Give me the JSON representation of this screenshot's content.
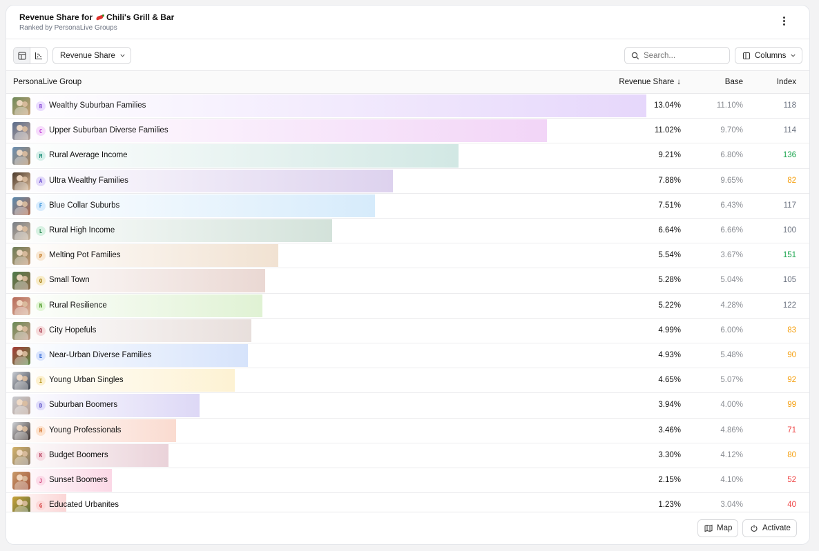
{
  "header": {
    "title_prefix": "Revenue Share for",
    "brand": "Chili's Grill & Bar",
    "subtitle": "Ranked by PersonaLive Groups"
  },
  "toolbar": {
    "metric_label": "Revenue Share",
    "search_placeholder": "Search...",
    "columns_label": "Columns"
  },
  "table": {
    "columns": {
      "group": "PersonaLive Group",
      "revenue_share": "Revenue Share",
      "sort_icon": "↓",
      "base": "Base",
      "index": "Index"
    },
    "rows": [
      {
        "letter": "B",
        "name": "Wealthy Suburban Families",
        "revenue_share": "13.04%",
        "base": "11.10%",
        "index": "118",
        "share_value": 13.04,
        "bar_color": "#e6d7fb",
        "letter_bg": "#eadcff",
        "letter_color": "#8a4dd6",
        "index_color": "#6b7280",
        "thumb_colors": [
          "#6f8a5a",
          "#c9a27a"
        ]
      },
      {
        "letter": "C",
        "name": "Upper Suburban Diverse Families",
        "revenue_share": "11.02%",
        "base": "9.70%",
        "index": "114",
        "share_value": 11.02,
        "bar_color": "#f2d5f7",
        "letter_bg": "#f6dcfb",
        "letter_color": "#c13bd6",
        "index_color": "#6b7280",
        "thumb_colors": [
          "#5b6b8a",
          "#b9a59a"
        ]
      },
      {
        "letter": "M",
        "name": "Rural Average Income",
        "revenue_share": "9.21%",
        "base": "6.80%",
        "index": "136",
        "share_value": 9.21,
        "bar_color": "#d2e8e4",
        "letter_bg": "#d6efe9",
        "letter_color": "#1f8f7a",
        "index_color": "#16a34a",
        "thumb_colors": [
          "#6a8fb3",
          "#a8845e"
        ]
      },
      {
        "letter": "A",
        "name": "Ultra Wealthy Families",
        "revenue_share": "7.88%",
        "base": "9.65%",
        "index": "82",
        "share_value": 7.88,
        "bar_color": "#ddd2ee",
        "letter_bg": "#e3dafa",
        "letter_color": "#6d4fd1",
        "index_color": "#f59e0b",
        "thumb_colors": [
          "#4b3a2c",
          "#d8b896"
        ]
      },
      {
        "letter": "F",
        "name": "Blue Collar Suburbs",
        "revenue_share": "7.51%",
        "base": "6.43%",
        "index": "117",
        "share_value": 7.51,
        "bar_color": "#d6ebfb",
        "letter_bg": "#d8ecfd",
        "letter_color": "#2b8bd6",
        "index_color": "#6b7280",
        "thumb_colors": [
          "#5a8ab0",
          "#b06a4c"
        ]
      },
      {
        "letter": "L",
        "name": "Rural High Income",
        "revenue_share": "6.64%",
        "base": "6.66%",
        "index": "100",
        "share_value": 6.64,
        "bar_color": "#d3e2da",
        "letter_bg": "#d7f1e2",
        "letter_color": "#2e8a55",
        "index_color": "#6b7280",
        "thumb_colors": [
          "#7a7f86",
          "#c8b39a"
        ]
      },
      {
        "letter": "P",
        "name": "Melting Pot Families",
        "revenue_share": "5.54%",
        "base": "3.67%",
        "index": "151",
        "share_value": 5.54,
        "bar_color": "#f1e2d2",
        "letter_bg": "#f8e7d2",
        "letter_color": "#c57a25",
        "index_color": "#16a34a",
        "thumb_colors": [
          "#6b7d59",
          "#c49774"
        ]
      },
      {
        "letter": "O",
        "name": "Small Town",
        "revenue_share": "5.28%",
        "base": "5.04%",
        "index": "105",
        "share_value": 5.28,
        "bar_color": "#ead8d3",
        "letter_bg": "#f8ecc8",
        "letter_color": "#a27a12",
        "index_color": "#6b7280",
        "thumb_colors": [
          "#4f7a4a",
          "#8a6a4a"
        ]
      },
      {
        "letter": "N",
        "name": "Rural Resilience",
        "revenue_share": "5.22%",
        "base": "4.28%",
        "index": "122",
        "share_value": 5.22,
        "bar_color": "#e0f2d4",
        "letter_bg": "#e2f6d6",
        "letter_color": "#4d9a2a",
        "index_color": "#6b7280",
        "thumb_colors": [
          "#b66a5a",
          "#d9b49a"
        ]
      },
      {
        "letter": "Q",
        "name": "City Hopefuls",
        "revenue_share": "4.99%",
        "base": "6.00%",
        "index": "83",
        "share_value": 4.99,
        "bar_color": "#e8dfdc",
        "letter_bg": "#f6dcdc",
        "letter_color": "#a3344a",
        "index_color": "#f59e0b",
        "thumb_colors": [
          "#6a8a55",
          "#c39a86"
        ]
      },
      {
        "letter": "E",
        "name": "Near-Urban Diverse Families",
        "revenue_share": "4.93%",
        "base": "5.48%",
        "index": "90",
        "share_value": 4.93,
        "bar_color": "#d6e3fb",
        "letter_bg": "#d9e4fd",
        "letter_color": "#3a6fd6",
        "index_color": "#f59e0b",
        "thumb_colors": [
          "#a53a36",
          "#5e8a4a"
        ]
      },
      {
        "letter": "I",
        "name": "Young Urban Singles",
        "revenue_share": "4.65%",
        "base": "5.07%",
        "index": "92",
        "share_value": 4.65,
        "bar_color": "#fdf2d3",
        "letter_bg": "#fdf1cf",
        "letter_color": "#b3921a",
        "index_color": "#f59e0b",
        "thumb_colors": [
          "#c9ccd2",
          "#3a3f4a"
        ]
      },
      {
        "letter": "D",
        "name": "Suburban Boomers",
        "revenue_share": "3.94%",
        "base": "4.00%",
        "index": "99",
        "share_value": 3.94,
        "bar_color": "#ddd8f6",
        "letter_bg": "#dfdcfb",
        "letter_color": "#5a4fc4",
        "index_color": "#f59e0b",
        "thumb_colors": [
          "#c7c9cf",
          "#b79f92"
        ]
      },
      {
        "letter": "H",
        "name": "Young Professionals",
        "revenue_share": "3.46%",
        "base": "4.86%",
        "index": "71",
        "share_value": 3.46,
        "bar_color": "#fadbd0",
        "letter_bg": "#fde3cf",
        "letter_color": "#d2702a",
        "index_color": "#ef4444",
        "thumb_colors": [
          "#cfd2d6",
          "#3a2e2a"
        ]
      },
      {
        "letter": "K",
        "name": "Budget Boomers",
        "revenue_share": "3.30%",
        "base": "4.12%",
        "index": "80",
        "share_value": 3.3,
        "bar_color": "#ead2d9",
        "letter_bg": "#f7dbe2",
        "letter_color": "#b33a5a",
        "index_color": "#f59e0b",
        "thumb_colors": [
          "#d2b26a",
          "#8a7a6a"
        ]
      },
      {
        "letter": "J",
        "name": "Sunset Boomers",
        "revenue_share": "2.15%",
        "base": "4.10%",
        "index": "52",
        "share_value": 2.15,
        "bar_color": "#fbd8e6",
        "letter_bg": "#fcdbe8",
        "letter_color": "#d0407a",
        "index_color": "#ef4444",
        "thumb_colors": [
          "#c99a6a",
          "#a0523a"
        ]
      },
      {
        "letter": "G",
        "name": "Educated Urbanites",
        "revenue_share": "1.23%",
        "base": "3.04%",
        "index": "40",
        "share_value": 1.23,
        "bar_color": "#fbd6d6",
        "letter_bg": "#fcd9d9",
        "letter_color": "#d23a3a",
        "index_color": "#ef4444",
        "thumb_colors": [
          "#c9a23a",
          "#5a6a3a"
        ]
      }
    ]
  },
  "footer": {
    "map_label": "Map",
    "activate_label": "Activate"
  }
}
